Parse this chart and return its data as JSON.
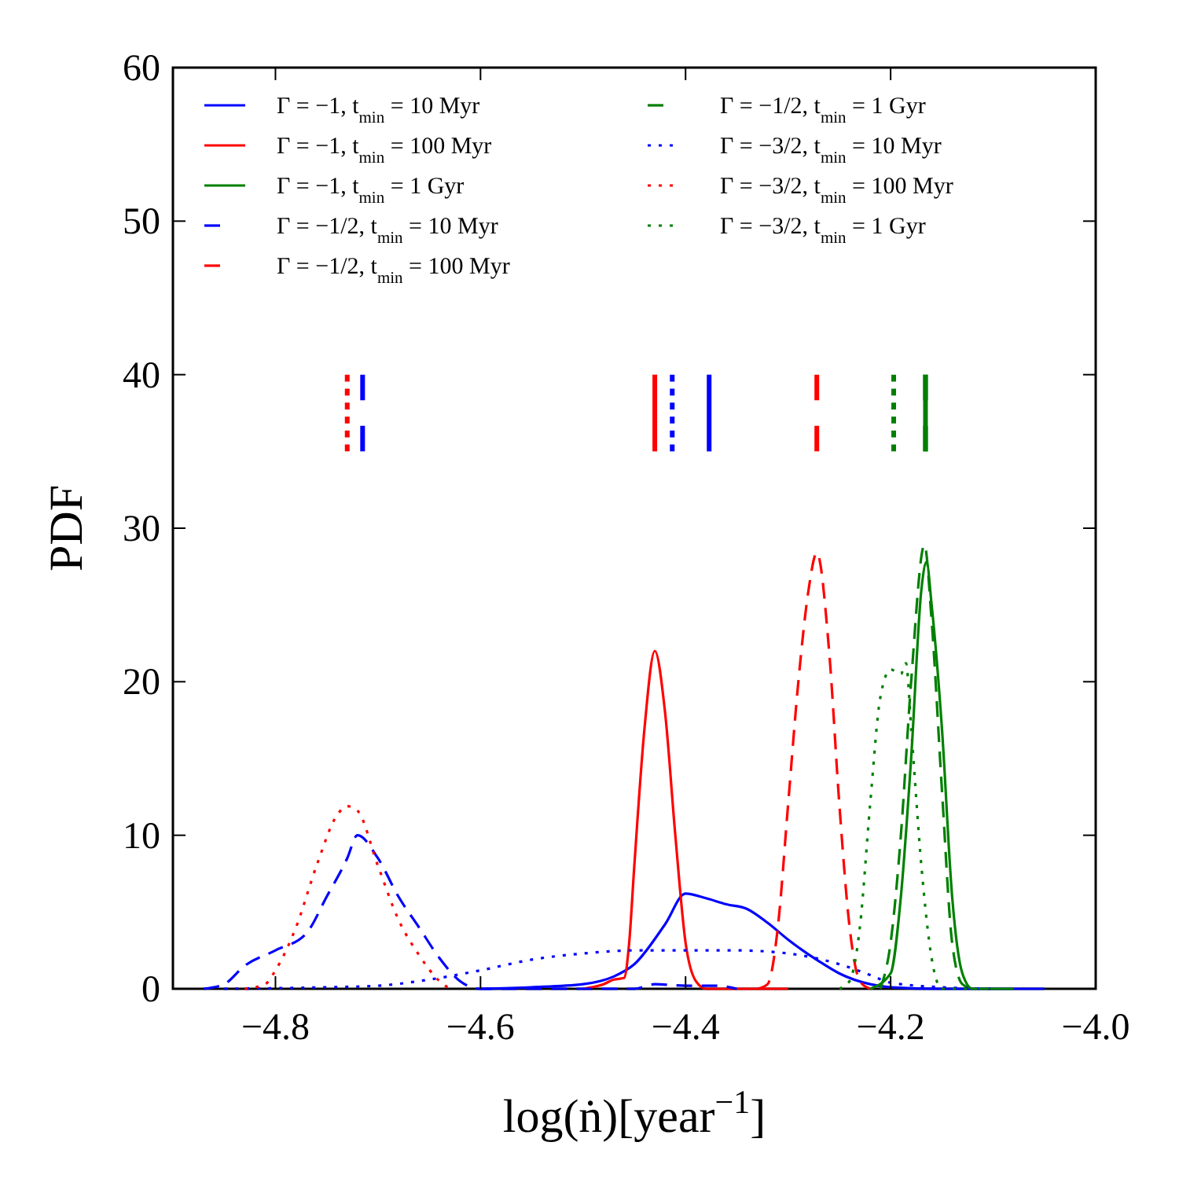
{
  "chart_data": {
    "type": "line",
    "xlabel": "log(ṅ)[year$^{−1}$]",
    "ylabel": "PDF",
    "xlim": [
      -4.9,
      -4.0
    ],
    "ylim": [
      0,
      60
    ],
    "xticks": [
      {
        "value": -4.8,
        "label": "−4.8"
      },
      {
        "value": -4.6,
        "label": "−4.6"
      },
      {
        "value": -4.4,
        "label": "−4.4"
      },
      {
        "value": -4.2,
        "label": "−4.2"
      },
      {
        "value": -4.0,
        "label": "−4.0"
      }
    ],
    "yticks": [
      0,
      10,
      20,
      30,
      40,
      50,
      60
    ],
    "grid": false,
    "legend": "top",
    "series": [
      {
        "name": "Γ = −1, t$_{min}$ = 10 Myr",
        "color": "#0000ff",
        "line_style": "solid",
        "x": [
          -4.6,
          -4.55,
          -4.5,
          -4.47,
          -4.45,
          -4.42,
          -4.4,
          -4.38,
          -4.36,
          -4.34,
          -4.32,
          -4.3,
          -4.27,
          -4.25,
          -4.22,
          -4.2,
          -4.15,
          -4.05
        ],
        "values": [
          0,
          0.1,
          0.3,
          0.8,
          1.6,
          4.2,
          6.2,
          5.9,
          5.5,
          5.2,
          4.3,
          3.2,
          1.8,
          1.0,
          0.3,
          0.1,
          0,
          0
        ]
      },
      {
        "name": "Γ = −1, t$_{min}$ = 100 Myr",
        "color": "#ff0000",
        "line_style": "solid",
        "x": [
          -4.5,
          -4.48,
          -4.47,
          -4.46,
          -4.455,
          -4.45,
          -4.44,
          -4.43,
          -4.42,
          -4.41,
          -4.4,
          -4.39,
          -4.38,
          -4.3
        ],
        "values": [
          0,
          0.3,
          0.6,
          0.7,
          3,
          8,
          17,
          22,
          18,
          10,
          3,
          0.5,
          0,
          0
        ]
      },
      {
        "name": "Γ = −1, t$_{min}$ = 1 Gyr",
        "color": "#008000",
        "line_style": "solid",
        "x": [
          -4.22,
          -4.2,
          -4.19,
          -4.18,
          -4.17,
          -4.165,
          -4.16,
          -4.15,
          -4.14,
          -4.13,
          -4.12,
          -4.08
        ],
        "values": [
          0,
          1,
          6,
          15,
          26,
          27.8,
          25,
          17,
          6,
          1,
          0,
          0
        ]
      },
      {
        "name": "Γ = −1/2, t$_{min}$ = 10 Myr",
        "color": "#0000ff",
        "line_style": "dashed",
        "x": [
          -4.87,
          -4.85,
          -4.83,
          -4.8,
          -4.77,
          -4.75,
          -4.73,
          -4.72,
          -4.7,
          -4.68,
          -4.66,
          -4.64,
          -4.62,
          -4.6,
          -4.45,
          -4.43,
          -4.4,
          -4.37,
          -4.35
        ],
        "values": [
          0,
          0.3,
          1.5,
          2.5,
          3.6,
          6,
          8.5,
          10,
          8.5,
          6,
          4,
          2,
          0.5,
          0,
          0,
          0.3,
          0.2,
          0.2,
          0
        ]
      },
      {
        "name": "Γ = −1/2, t$_{min}$ = 100 Myr",
        "color": "#ff0000",
        "line_style": "dashed",
        "x": [
          -4.33,
          -4.32,
          -4.31,
          -4.3,
          -4.29,
          -4.28,
          -4.272,
          -4.26,
          -4.25,
          -4.24,
          -4.23,
          -4.22
        ],
        "values": [
          0,
          0.3,
          4,
          12,
          20,
          26,
          28.4,
          22,
          12,
          4,
          0.5,
          0
        ]
      },
      {
        "name": "Γ = −1/2, t$_{min}$ = 1 Gyr",
        "color": "#008000",
        "line_style": "dashed",
        "x": [
          -4.21,
          -4.2,
          -4.19,
          -4.18,
          -4.167,
          -4.16,
          -4.15,
          -4.14,
          -4.13,
          -4.12
        ],
        "values": [
          0,
          3,
          10,
          20,
          28.9,
          24,
          13,
          3,
          0.3,
          0
        ]
      },
      {
        "name": "Γ = −3/2, t$_{min}$ = 10 Myr",
        "color": "#0000ff",
        "line_style": "dotted",
        "x": [
          -4.85,
          -4.75,
          -4.7,
          -4.65,
          -4.6,
          -4.55,
          -4.5,
          -4.45,
          -4.4,
          -4.35,
          -4.3,
          -4.25,
          -4.22,
          -4.2,
          -4.15,
          -4.1
        ],
        "values": [
          0,
          0.1,
          0.2,
          0.6,
          1.2,
          1.9,
          2.3,
          2.5,
          2.5,
          2.5,
          2.3,
          1.6,
          0.9,
          0.4,
          0.1,
          0
        ]
      },
      {
        "name": "Γ = −3/2, t$_{min}$ = 100 Myr",
        "color": "#ff0000",
        "line_style": "dotted",
        "x": [
          -4.83,
          -4.81,
          -4.8,
          -4.78,
          -4.76,
          -4.74,
          -4.73,
          -4.72,
          -4.7,
          -4.68,
          -4.66,
          -4.64,
          -4.63
        ],
        "values": [
          0,
          0.3,
          1.2,
          4,
          8,
          11.3,
          11.9,
          11.6,
          8,
          4.5,
          2.2,
          0.5,
          0
        ]
      },
      {
        "name": "Γ = −3/2, t$_{min}$ = 1 Gyr",
        "color": "#008000",
        "line_style": "dotted",
        "x": [
          -4.25,
          -4.24,
          -4.23,
          -4.22,
          -4.21,
          -4.2,
          -4.19,
          -4.185,
          -4.18,
          -4.17,
          -4.16,
          -4.15,
          -4.1
        ],
        "values": [
          0,
          0.5,
          4,
          12,
          19,
          20.8,
          20.5,
          21.2,
          17,
          8,
          2,
          0,
          0
        ]
      },
      {
        "color": "#0000ff",
        "line_style": "solid",
        "x": [
          -4.377,
          -4.377
        ],
        "values": [
          35,
          40
        ]
      },
      {
        "color": "#ff0000",
        "line_style": "solid",
        "x": [
          -4.43,
          -4.43
        ],
        "values": [
          35,
          40
        ]
      },
      {
        "color": "#008000",
        "line_style": "solid",
        "x": [
          -4.166,
          -4.166
        ],
        "values": [
          35,
          40
        ]
      },
      {
        "color": "#0000ff",
        "line_style": "dashed",
        "x": [
          -4.715,
          -4.715
        ],
        "values": [
          35,
          40
        ]
      },
      {
        "color": "#ff0000",
        "line_style": "dashed",
        "x": [
          -4.272,
          -4.272
        ],
        "values": [
          35,
          40
        ]
      },
      {
        "color": "#008000",
        "line_style": "dashed",
        "x": [
          -4.166,
          -4.166
        ],
        "values": [
          35,
          40
        ]
      },
      {
        "color": "#0000ff",
        "line_style": "dotted",
        "x": [
          -4.413,
          -4.413
        ],
        "values": [
          35,
          40
        ]
      },
      {
        "color": "#ff0000",
        "line_style": "dotted",
        "x": [
          -4.73,
          -4.73
        ],
        "values": [
          35,
          40
        ]
      },
      {
        "color": "#008000",
        "line_style": "dotted",
        "x": [
          -4.197,
          -4.197
        ],
        "values": [
          35,
          40
        ]
      }
    ]
  }
}
